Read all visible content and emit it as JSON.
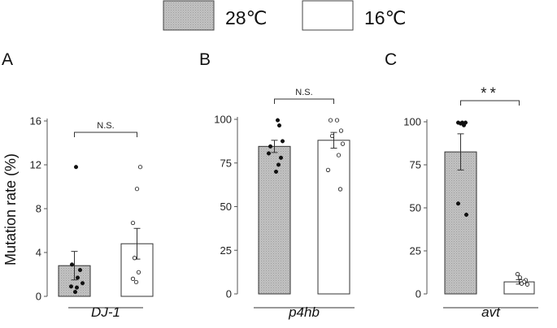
{
  "legend": {
    "items": [
      {
        "label": "28℃",
        "fill": "#bdbdbd",
        "hatched": true
      },
      {
        "label": "16℃",
        "fill": "#ffffff",
        "hatched": false
      }
    ]
  },
  "chart_data": [
    {
      "type": "bar",
      "panel_label": "A",
      "gene": "DJ-1",
      "ylabel": "Mutation rate (%)",
      "ylim": [
        0,
        16
      ],
      "yticks": [
        0,
        4,
        8,
        12,
        16
      ],
      "significance": "N.S.",
      "series": [
        {
          "name": "28℃",
          "mean": 2.8,
          "sem": 1.3,
          "points": [
            11.8,
            2.9,
            2.4,
            1.7,
            1.2,
            0.9,
            0.8,
            0.4
          ]
        },
        {
          "name": "16℃",
          "mean": 4.8,
          "sem": 1.4,
          "points": [
            11.8,
            9.8,
            6.7,
            3.5,
            2.2,
            1.6,
            1.3
          ]
        }
      ]
    },
    {
      "type": "bar",
      "panel_label": "B",
      "gene": "p4hb",
      "ylabel": "",
      "ylim": [
        0,
        100
      ],
      "yticks": [
        0,
        25,
        50,
        75,
        100
      ],
      "significance": "N.S.",
      "series": [
        {
          "name": "28℃",
          "mean": 84.5,
          "sem": 3.5,
          "points": [
            99.5,
            96.5,
            87.5,
            84.5,
            80.5,
            78,
            74,
            70
          ]
        },
        {
          "name": "16℃",
          "mean": 88,
          "sem": 4.5,
          "points": [
            99.5,
            99.5,
            93.5,
            90.5,
            86,
            79.5,
            71,
            60
          ]
        }
      ]
    },
    {
      "type": "bar",
      "panel_label": "C",
      "gene": "avt",
      "ylabel": "",
      "ylim": [
        0,
        100
      ],
      "yticks": [
        0,
        25,
        50,
        75,
        100
      ],
      "significance": "**",
      "series": [
        {
          "name": "28℃",
          "mean": 82.5,
          "sem": 10.5,
          "points": [
            99.5,
            99.5,
            99.5,
            99,
            98,
            52.5,
            46
          ]
        },
        {
          "name": "16℃",
          "mean": 7,
          "sem": 1.3,
          "points": [
            11.5,
            9.5,
            8,
            7,
            6,
            5.5
          ]
        }
      ]
    }
  ]
}
